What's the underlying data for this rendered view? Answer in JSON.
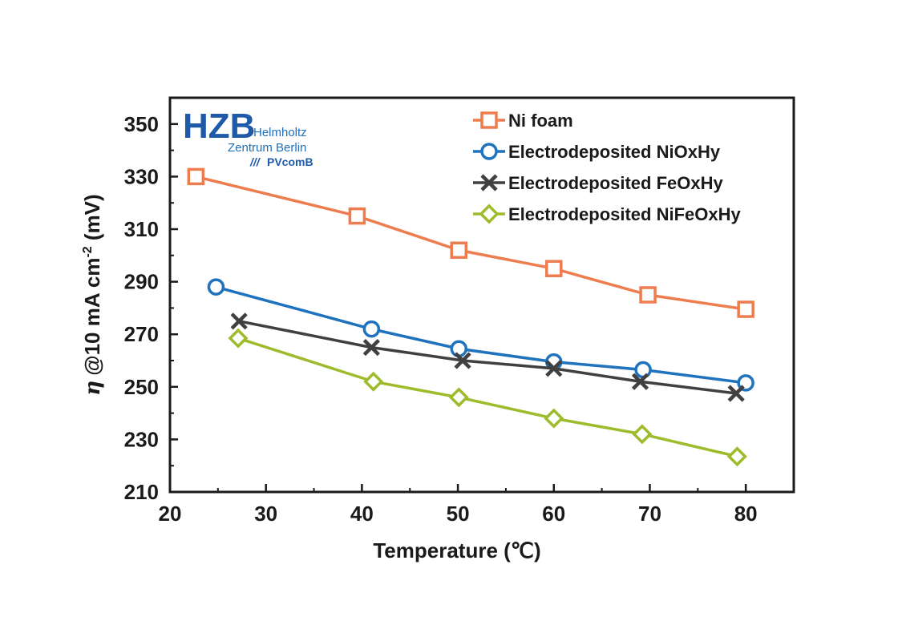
{
  "chart_data": {
    "type": "line",
    "xlabel": "Temperature (℃)",
    "ylabel_sub": "@10 mA cm",
    "ylabel_symbol": "η",
    "ylabel_sup": "-2",
    "ylabel_unit": " (mV)",
    "xlim": [
      20,
      85
    ],
    "ylim": [
      210,
      360
    ],
    "xticks": [
      20,
      30,
      40,
      50,
      60,
      70,
      80
    ],
    "yticks": [
      210,
      230,
      250,
      270,
      290,
      310,
      330,
      350
    ],
    "legend_position": "top-right",
    "series": [
      {
        "name": "Ni foam",
        "color": "#ed7d4f",
        "marker": "square",
        "x": [
          22.7,
          39.5,
          50.1,
          60.0,
          69.8,
          80.0
        ],
        "y": [
          330,
          315,
          302,
          295,
          285,
          279.5
        ]
      },
      {
        "name": "Electrodeposited NiOxHy",
        "color": "#1f72be",
        "marker": "circle",
        "x": [
          24.8,
          41.0,
          50.1,
          60.0,
          69.3,
          80.0
        ],
        "y": [
          288,
          272,
          264.5,
          259.5,
          256.5,
          251.5
        ]
      },
      {
        "name": "Electrodeposited FeOxHy",
        "color": "#404040",
        "marker": "x",
        "x": [
          27.2,
          41.0,
          50.5,
          60.0,
          69.0,
          79.0
        ],
        "y": [
          275,
          265,
          260,
          257,
          252,
          247.5
        ]
      },
      {
        "name": "Electrodeposited NiFeOxHy",
        "color": "#9ebb2b",
        "marker": "diamond",
        "x": [
          27.1,
          41.2,
          50.1,
          60.0,
          69.2,
          79.1
        ],
        "y": [
          268.5,
          252,
          246,
          238,
          232,
          223.5
        ]
      }
    ]
  },
  "logo": {
    "big": "HZB",
    "line1": "Helmholtz",
    "line2": "Zentrum Berlin",
    "line3": "PVcomB",
    "line3_prefix": "///",
    "color": "#1f5aa8"
  }
}
